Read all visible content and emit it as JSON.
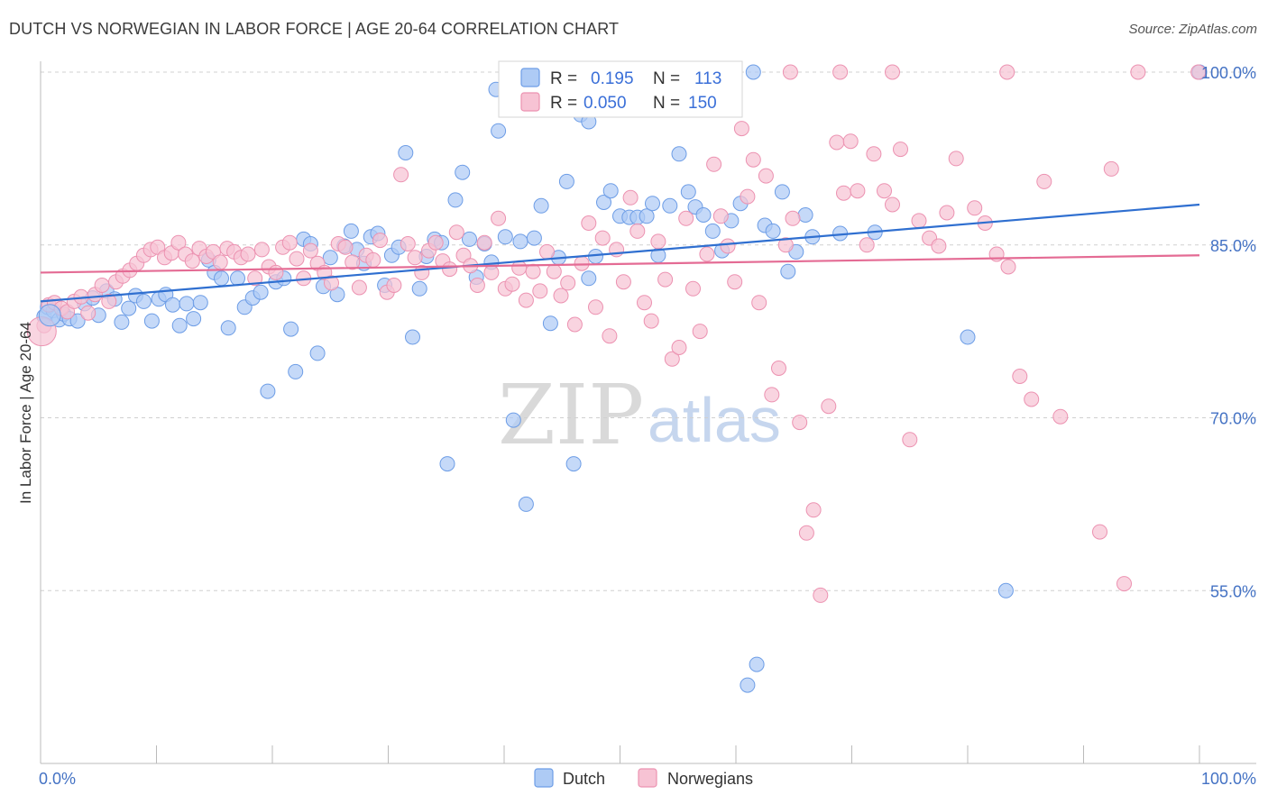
{
  "title": "DUTCH VS NORWEGIAN IN LABOR FORCE | AGE 20-64 CORRELATION CHART",
  "source": "Source: ZipAtlas.com",
  "colors": {
    "dutch_fill": "#aecbf5",
    "dutch_stroke": "#6d9de6",
    "dutch_line": "#2f6fd0",
    "norwegian_fill": "#f7c3d4",
    "norwegian_stroke": "#ec92b1",
    "norwegian_line": "#e46b94",
    "tick_text": "#4472c4",
    "grid": "#d0d0d0"
  },
  "legend": {
    "dutch": {
      "r_label": "R =",
      "r_value": "0.195",
      "n_label": "N =",
      "n_value": "113"
    },
    "norwegians": {
      "r_label": "R =",
      "r_value": "0.050",
      "n_label": "N =",
      "n_value": "150"
    }
  },
  "bottom_legend": [
    "Dutch",
    "Norwegians"
  ],
  "watermark": {
    "zip": "ZIP",
    "atlas": "atlas"
  },
  "chart_data": {
    "type": "scatter",
    "xlabel": "",
    "ylabel": "In Labor Force | Age 20-64",
    "x_tick_labels": [
      "0.0%",
      "100.0%"
    ],
    "y_tick_labels": [
      "100.0%",
      "85.0%",
      "70.0%",
      "55.0%"
    ],
    "y_ticks": [
      100,
      85,
      70,
      55
    ],
    "xlim": [
      0,
      100
    ],
    "ylim": [
      41.5,
      101.5
    ],
    "grid": true,
    "series": [
      {
        "name": "Dutch",
        "points": [
          [
            0.3,
            78.8
          ],
          [
            0.6,
            79.6
          ],
          [
            1.1,
            79.3
          ],
          [
            1.6,
            78.5
          ],
          [
            2.0,
            79.0
          ],
          [
            2.5,
            78.6
          ],
          [
            3.2,
            78.4
          ],
          [
            3.8,
            79.9
          ],
          [
            4.5,
            80.4
          ],
          [
            5.0,
            78.9
          ],
          [
            5.7,
            81.0
          ],
          [
            6.4,
            80.3
          ],
          [
            7.0,
            78.3
          ],
          [
            7.6,
            79.5
          ],
          [
            8.2,
            80.6
          ],
          [
            8.9,
            80.1
          ],
          [
            9.6,
            78.4
          ],
          [
            10.2,
            80.3
          ],
          [
            10.8,
            80.7
          ],
          [
            11.4,
            79.8
          ],
          [
            12.0,
            78.0
          ],
          [
            12.6,
            79.9
          ],
          [
            13.2,
            78.6
          ],
          [
            13.8,
            80.0
          ],
          [
            14.5,
            83.7
          ],
          [
            15.0,
            82.6
          ],
          [
            15.6,
            82.1
          ],
          [
            16.2,
            77.8
          ],
          [
            17.0,
            82.1
          ],
          [
            17.6,
            79.6
          ],
          [
            18.3,
            80.4
          ],
          [
            19.0,
            80.9
          ],
          [
            19.6,
            72.3
          ],
          [
            20.3,
            81.8
          ],
          [
            21.0,
            82.1
          ],
          [
            21.6,
            77.7
          ],
          [
            22.0,
            74.0
          ],
          [
            22.7,
            85.5
          ],
          [
            23.3,
            85.1
          ],
          [
            23.9,
            75.6
          ],
          [
            24.4,
            81.4
          ],
          [
            25.0,
            83.9
          ],
          [
            25.6,
            80.7
          ],
          [
            26.2,
            84.9
          ],
          [
            26.8,
            86.2
          ],
          [
            27.3,
            84.6
          ],
          [
            27.9,
            83.4
          ],
          [
            28.5,
            85.7
          ],
          [
            29.1,
            86.0
          ],
          [
            29.7,
            81.5
          ],
          [
            30.3,
            84.1
          ],
          [
            30.9,
            84.8
          ],
          [
            31.5,
            93.0
          ],
          [
            32.1,
            77.0
          ],
          [
            32.7,
            81.2
          ],
          [
            33.3,
            84.0
          ],
          [
            34.0,
            85.5
          ],
          [
            34.6,
            85.2
          ],
          [
            35.1,
            66.0
          ],
          [
            35.8,
            88.9
          ],
          [
            36.4,
            91.3
          ],
          [
            37.0,
            85.5
          ],
          [
            37.6,
            82.2
          ],
          [
            38.3,
            85.1
          ],
          [
            38.9,
            83.5
          ],
          [
            39.5,
            94.9
          ],
          [
            40.1,
            85.7
          ],
          [
            40.8,
            69.8
          ],
          [
            41.4,
            85.3
          ],
          [
            41.9,
            62.5
          ],
          [
            42.6,
            85.6
          ],
          [
            43.2,
            88.4
          ],
          [
            44.0,
            78.2
          ],
          [
            44.7,
            83.9
          ],
          [
            45.4,
            90.5
          ],
          [
            46.0,
            66.0
          ],
          [
            46.6,
            96.3
          ],
          [
            47.3,
            95.7
          ],
          [
            47.9,
            84.0
          ],
          [
            48.6,
            88.7
          ],
          [
            49.2,
            89.7
          ],
          [
            50.0,
            87.5
          ],
          [
            50.8,
            87.4
          ],
          [
            51.5,
            87.4
          ],
          [
            52.3,
            87.5
          ],
          [
            52.8,
            88.6
          ],
          [
            53.3,
            84.1
          ],
          [
            54.3,
            88.4
          ],
          [
            55.1,
            92.9
          ],
          [
            55.9,
            89.6
          ],
          [
            56.5,
            88.3
          ],
          [
            57.2,
            87.6
          ],
          [
            58.0,
            86.2
          ],
          [
            58.8,
            84.5
          ],
          [
            59.6,
            87.1
          ],
          [
            60.4,
            88.6
          ],
          [
            61.0,
            46.8
          ],
          [
            61.8,
            48.6
          ],
          [
            62.5,
            86.7
          ],
          [
            63.2,
            86.2
          ],
          [
            64.0,
            89.6
          ],
          [
            64.5,
            82.7
          ],
          [
            65.2,
            84.4
          ],
          [
            66.0,
            87.6
          ],
          [
            66.6,
            85.7
          ],
          [
            69.0,
            86.0
          ],
          [
            72.0,
            86.1
          ],
          [
            80.0,
            77.0
          ],
          [
            83.3,
            55.0
          ],
          [
            100.0,
            100.0
          ],
          [
            39.3,
            98.5
          ],
          [
            61.5,
            100.0
          ],
          [
            47.3,
            82.1
          ]
        ]
      },
      {
        "name": "Norwegians",
        "points": [
          [
            0.3,
            78.0
          ],
          [
            0.7,
            79.8
          ],
          [
            1.2,
            80.0
          ],
          [
            1.8,
            79.5
          ],
          [
            2.3,
            79.2
          ],
          [
            2.9,
            80.1
          ],
          [
            3.5,
            80.5
          ],
          [
            4.1,
            79.1
          ],
          [
            4.7,
            80.7
          ],
          [
            5.3,
            81.5
          ],
          [
            5.9,
            80.1
          ],
          [
            6.5,
            81.8
          ],
          [
            7.1,
            82.3
          ],
          [
            7.7,
            82.8
          ],
          [
            8.3,
            83.4
          ],
          [
            8.9,
            84.1
          ],
          [
            9.5,
            84.6
          ],
          [
            10.1,
            84.8
          ],
          [
            10.7,
            83.9
          ],
          [
            11.3,
            84.3
          ],
          [
            11.9,
            85.2
          ],
          [
            12.5,
            84.2
          ],
          [
            13.1,
            83.6
          ],
          [
            13.7,
            84.7
          ],
          [
            14.3,
            84.0
          ],
          [
            14.9,
            84.4
          ],
          [
            15.5,
            83.5
          ],
          [
            16.1,
            84.7
          ],
          [
            16.7,
            84.4
          ],
          [
            17.3,
            83.9
          ],
          [
            17.9,
            84.2
          ],
          [
            18.5,
            82.1
          ],
          [
            19.1,
            84.6
          ],
          [
            19.7,
            83.1
          ],
          [
            20.3,
            82.6
          ],
          [
            20.9,
            84.8
          ],
          [
            21.5,
            85.2
          ],
          [
            22.1,
            83.8
          ],
          [
            22.7,
            82.1
          ],
          [
            23.3,
            84.5
          ],
          [
            23.9,
            83.4
          ],
          [
            24.5,
            82.6
          ],
          [
            25.1,
            81.7
          ],
          [
            25.7,
            85.1
          ],
          [
            26.3,
            84.8
          ],
          [
            26.9,
            83.5
          ],
          [
            27.5,
            81.3
          ],
          [
            28.1,
            84.1
          ],
          [
            28.7,
            83.7
          ],
          [
            29.3,
            85.4
          ],
          [
            29.9,
            80.9
          ],
          [
            30.5,
            81.5
          ],
          [
            31.1,
            91.1
          ],
          [
            31.7,
            85.1
          ],
          [
            32.3,
            83.9
          ],
          [
            32.9,
            82.6
          ],
          [
            33.5,
            84.5
          ],
          [
            34.1,
            85.2
          ],
          [
            34.7,
            83.6
          ],
          [
            35.3,
            82.9
          ],
          [
            35.9,
            86.1
          ],
          [
            36.5,
            84.1
          ],
          [
            37.1,
            83.2
          ],
          [
            37.7,
            81.5
          ],
          [
            38.3,
            85.2
          ],
          [
            38.9,
            82.6
          ],
          [
            39.5,
            87.3
          ],
          [
            40.1,
            81.2
          ],
          [
            40.7,
            81.6
          ],
          [
            41.3,
            83.0
          ],
          [
            41.9,
            80.2
          ],
          [
            42.5,
            82.7
          ],
          [
            43.1,
            81.0
          ],
          [
            43.7,
            84.4
          ],
          [
            44.3,
            82.7
          ],
          [
            44.9,
            80.6
          ],
          [
            45.5,
            81.7
          ],
          [
            46.1,
            78.1
          ],
          [
            46.7,
            83.4
          ],
          [
            47.3,
            86.9
          ],
          [
            47.9,
            79.6
          ],
          [
            48.5,
            85.6
          ],
          [
            49.1,
            77.1
          ],
          [
            49.7,
            84.6
          ],
          [
            50.3,
            81.8
          ],
          [
            50.9,
            89.1
          ],
          [
            51.5,
            86.2
          ],
          [
            52.1,
            80.0
          ],
          [
            52.7,
            78.4
          ],
          [
            53.3,
            85.3
          ],
          [
            53.9,
            82.0
          ],
          [
            54.5,
            75.1
          ],
          [
            55.1,
            76.1
          ],
          [
            55.7,
            87.3
          ],
          [
            56.3,
            81.2
          ],
          [
            56.9,
            77.5
          ],
          [
            57.5,
            84.2
          ],
          [
            58.1,
            92.0
          ],
          [
            58.7,
            87.5
          ],
          [
            59.3,
            84.9
          ],
          [
            59.9,
            81.8
          ],
          [
            60.5,
            95.1
          ],
          [
            61.0,
            89.2
          ],
          [
            61.5,
            92.4
          ],
          [
            62.0,
            80.0
          ],
          [
            62.6,
            91.0
          ],
          [
            63.1,
            72.0
          ],
          [
            63.7,
            74.3
          ],
          [
            64.3,
            85.0
          ],
          [
            64.9,
            87.3
          ],
          [
            65.5,
            69.6
          ],
          [
            66.1,
            60.0
          ],
          [
            66.7,
            62.0
          ],
          [
            67.3,
            54.6
          ],
          [
            68.0,
            71.0
          ],
          [
            68.7,
            93.9
          ],
          [
            69.3,
            89.5
          ],
          [
            69.9,
            94.0
          ],
          [
            70.5,
            89.7
          ],
          [
            71.3,
            85.0
          ],
          [
            71.9,
            92.9
          ],
          [
            72.8,
            89.7
          ],
          [
            73.5,
            88.5
          ],
          [
            74.2,
            93.3
          ],
          [
            75.0,
            68.1
          ],
          [
            75.8,
            87.1
          ],
          [
            76.7,
            85.6
          ],
          [
            77.5,
            84.9
          ],
          [
            78.2,
            87.8
          ],
          [
            79.0,
            92.5
          ],
          [
            80.6,
            88.2
          ],
          [
            81.5,
            86.9
          ],
          [
            82.5,
            84.2
          ],
          [
            83.5,
            83.1
          ],
          [
            84.5,
            73.6
          ],
          [
            85.5,
            71.6
          ],
          [
            86.6,
            90.5
          ],
          [
            88.0,
            70.1
          ],
          [
            91.4,
            60.1
          ],
          [
            92.4,
            91.6
          ],
          [
            93.5,
            55.6
          ],
          [
            64.7,
            100.0
          ],
          [
            69.0,
            100.0
          ],
          [
            73.5,
            100.0
          ],
          [
            83.4,
            100.0
          ],
          [
            94.7,
            100.0
          ],
          [
            99.9,
            100.0
          ]
        ]
      }
    ],
    "trend_lines": [
      {
        "name": "Dutch",
        "x": [
          0,
          100
        ],
        "y": [
          80.1,
          88.5
        ]
      },
      {
        "name": "Norwegians",
        "x": [
          0,
          100
        ],
        "y": [
          82.6,
          84.1
        ]
      }
    ]
  }
}
